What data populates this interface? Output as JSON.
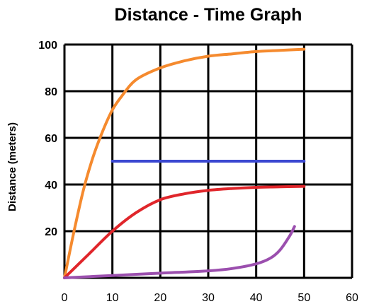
{
  "chart_data": {
    "type": "line",
    "title": "Distance - Time Graph",
    "xlabel": "",
    "ylabel": "Distance (meters)",
    "xlim": [
      0,
      60
    ],
    "ylim": [
      0,
      100
    ],
    "x_ticks": [
      "0",
      "10",
      "20",
      "30",
      "40",
      "50",
      "60"
    ],
    "y_ticks": [
      "20",
      "40",
      "60",
      "80",
      "100"
    ],
    "grid": true,
    "legend": "none",
    "series": [
      {
        "color": "#f58a2e",
        "x": [
          0,
          2,
          4,
          6,
          8,
          10,
          12,
          15,
          20,
          25,
          30,
          35,
          40,
          45,
          50
        ],
        "y": [
          0,
          20,
          38,
          52,
          63,
          72,
          78,
          85,
          90,
          93,
          95,
          96,
          97,
          97.5,
          98
        ]
      },
      {
        "color": "#3b48d1",
        "x": [
          10,
          50
        ],
        "y": [
          50,
          50
        ]
      },
      {
        "color": "#e0262b",
        "x": [
          0,
          5,
          10,
          15,
          20,
          25,
          30,
          35,
          40,
          45,
          50
        ],
        "y": [
          0,
          10,
          20,
          28,
          33.5,
          36,
          37.5,
          38.3,
          38.8,
          39,
          39.2
        ]
      },
      {
        "color": "#9b4fae",
        "x": [
          0,
          10,
          20,
          30,
          35,
          40,
          43,
          45,
          47,
          48
        ],
        "y": [
          0,
          1,
          2,
          3,
          4,
          6,
          8.5,
          12,
          18,
          22
        ]
      }
    ]
  }
}
